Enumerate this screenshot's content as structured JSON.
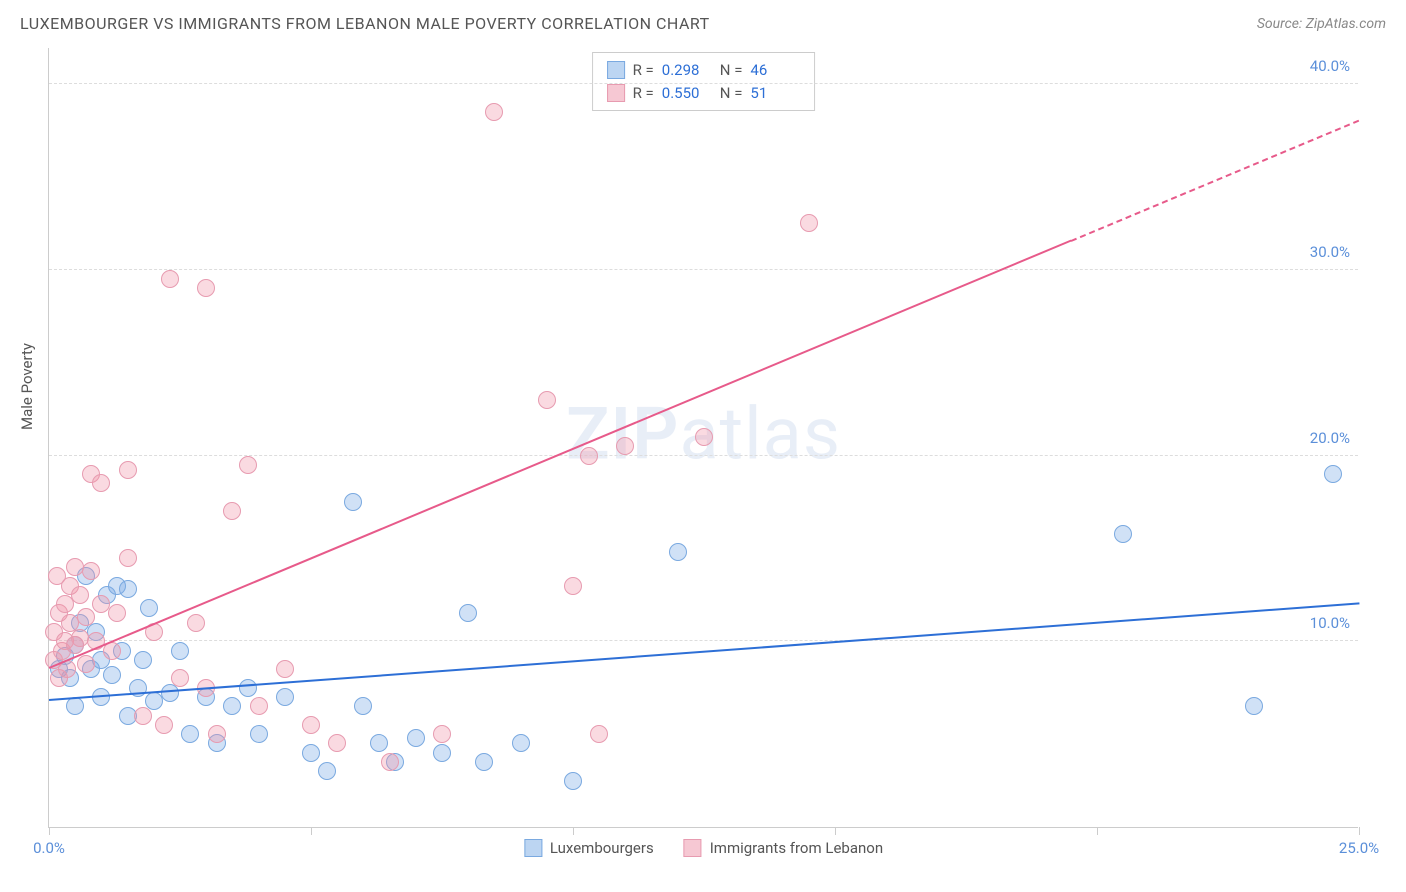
{
  "header": {
    "title": "LUXEMBOURGER VS IMMIGRANTS FROM LEBANON MALE POVERTY CORRELATION CHART",
    "source": "Source: ZipAtlas.com"
  },
  "watermark": {
    "part1": "ZIP",
    "part2": "atlas"
  },
  "chart": {
    "type": "scatter",
    "y_axis_label": "Male Poverty",
    "xlim": [
      0,
      25
    ],
    "ylim": [
      0,
      42
    ],
    "x_ticks": [
      0,
      5,
      10,
      15,
      20,
      25
    ],
    "x_tick_labels": [
      "0.0%",
      "",
      "",
      "",
      "",
      "25.0%"
    ],
    "y_ticks": [
      10,
      20,
      30,
      40
    ],
    "y_tick_labels": [
      "10.0%",
      "20.0%",
      "30.0%",
      "40.0%"
    ],
    "tick_color": "#5b8fd9",
    "grid_color": "#dddddd",
    "axis_color": "#cccccc",
    "background_color": "#ffffff",
    "marker_radius": 9,
    "marker_stroke_width": 1.5,
    "series": [
      {
        "name": "Luxembourgers",
        "fill": "rgba(120, 170, 230, 0.35)",
        "stroke": "#7aa9e0",
        "swatch_fill": "#bcd5f2",
        "swatch_stroke": "#7aa9e0",
        "R": "0.298",
        "N": "46",
        "trend": {
          "x1": 0,
          "y1": 6.8,
          "x2": 25,
          "y2": 12.0,
          "color": "#2d6fd6",
          "dash_from_x": null
        },
        "points": [
          [
            0.2,
            8.5
          ],
          [
            0.3,
            9.2
          ],
          [
            0.4,
            8.0
          ],
          [
            0.5,
            9.8
          ],
          [
            0.5,
            6.5
          ],
          [
            0.6,
            11.0
          ],
          [
            0.7,
            13.5
          ],
          [
            0.8,
            8.5
          ],
          [
            0.9,
            10.5
          ],
          [
            1.0,
            9.0
          ],
          [
            1.0,
            7.0
          ],
          [
            1.1,
            12.5
          ],
          [
            1.2,
            8.2
          ],
          [
            1.3,
            13.0
          ],
          [
            1.4,
            9.5
          ],
          [
            1.5,
            12.8
          ],
          [
            1.5,
            6.0
          ],
          [
            1.7,
            7.5
          ],
          [
            1.8,
            9.0
          ],
          [
            1.9,
            11.8
          ],
          [
            2.0,
            6.8
          ],
          [
            2.3,
            7.2
          ],
          [
            2.5,
            9.5
          ],
          [
            2.7,
            5.0
          ],
          [
            3.0,
            7.0
          ],
          [
            3.2,
            4.5
          ],
          [
            3.5,
            6.5
          ],
          [
            3.8,
            7.5
          ],
          [
            4.0,
            5.0
          ],
          [
            4.5,
            7.0
          ],
          [
            5.0,
            4.0
          ],
          [
            5.3,
            3.0
          ],
          [
            5.8,
            17.5
          ],
          [
            6.0,
            6.5
          ],
          [
            6.3,
            4.5
          ],
          [
            6.6,
            3.5
          ],
          [
            7.0,
            4.8
          ],
          [
            7.5,
            4.0
          ],
          [
            8.0,
            11.5
          ],
          [
            8.3,
            3.5
          ],
          [
            9.0,
            4.5
          ],
          [
            10.0,
            2.5
          ],
          [
            12.0,
            14.8
          ],
          [
            20.5,
            15.8
          ],
          [
            23.0,
            6.5
          ],
          [
            24.5,
            19.0
          ]
        ]
      },
      {
        "name": "Immigrants from Lebanon",
        "fill": "rgba(240, 150, 170, 0.35)",
        "stroke": "#e79bb0",
        "swatch_fill": "#f6c8d3",
        "swatch_stroke": "#e79bb0",
        "R": "0.550",
        "N": "51",
        "trend": {
          "x1": 0,
          "y1": 8.5,
          "x2": 25,
          "y2": 38.0,
          "color": "#e75a8a",
          "dash_from_x": 19.5
        },
        "points": [
          [
            0.1,
            9.0
          ],
          [
            0.1,
            10.5
          ],
          [
            0.15,
            13.5
          ],
          [
            0.2,
            8.0
          ],
          [
            0.2,
            11.5
          ],
          [
            0.25,
            9.5
          ],
          [
            0.3,
            10.0
          ],
          [
            0.3,
            12.0
          ],
          [
            0.35,
            8.5
          ],
          [
            0.4,
            11.0
          ],
          [
            0.4,
            13.0
          ],
          [
            0.5,
            9.8
          ],
          [
            0.5,
            14.0
          ],
          [
            0.6,
            10.2
          ],
          [
            0.6,
            12.5
          ],
          [
            0.7,
            8.8
          ],
          [
            0.7,
            11.3
          ],
          [
            0.8,
            13.8
          ],
          [
            0.8,
            19.0
          ],
          [
            0.9,
            10.0
          ],
          [
            1.0,
            12.0
          ],
          [
            1.0,
            18.5
          ],
          [
            1.2,
            9.5
          ],
          [
            1.3,
            11.5
          ],
          [
            1.5,
            14.5
          ],
          [
            1.5,
            19.2
          ],
          [
            1.8,
            6.0
          ],
          [
            2.0,
            10.5
          ],
          [
            2.2,
            5.5
          ],
          [
            2.3,
            29.5
          ],
          [
            2.5,
            8.0
          ],
          [
            2.8,
            11.0
          ],
          [
            3.0,
            29.0
          ],
          [
            3.0,
            7.5
          ],
          [
            3.2,
            5.0
          ],
          [
            3.5,
            17.0
          ],
          [
            3.8,
            19.5
          ],
          [
            4.0,
            6.5
          ],
          [
            4.5,
            8.5
          ],
          [
            5.0,
            5.5
          ],
          [
            5.5,
            4.5
          ],
          [
            6.5,
            3.5
          ],
          [
            7.5,
            5.0
          ],
          [
            8.5,
            38.5
          ],
          [
            9.5,
            23.0
          ],
          [
            10.0,
            13.0
          ],
          [
            10.5,
            5.0
          ],
          [
            11.0,
            20.5
          ],
          [
            12.5,
            21.0
          ],
          [
            14.5,
            32.5
          ],
          [
            10.3,
            20.0
          ]
        ]
      }
    ],
    "bottom_legend": [
      {
        "label": "Luxembourgers",
        "series_index": 0
      },
      {
        "label": "Immigrants from Lebanon",
        "series_index": 1
      }
    ]
  }
}
